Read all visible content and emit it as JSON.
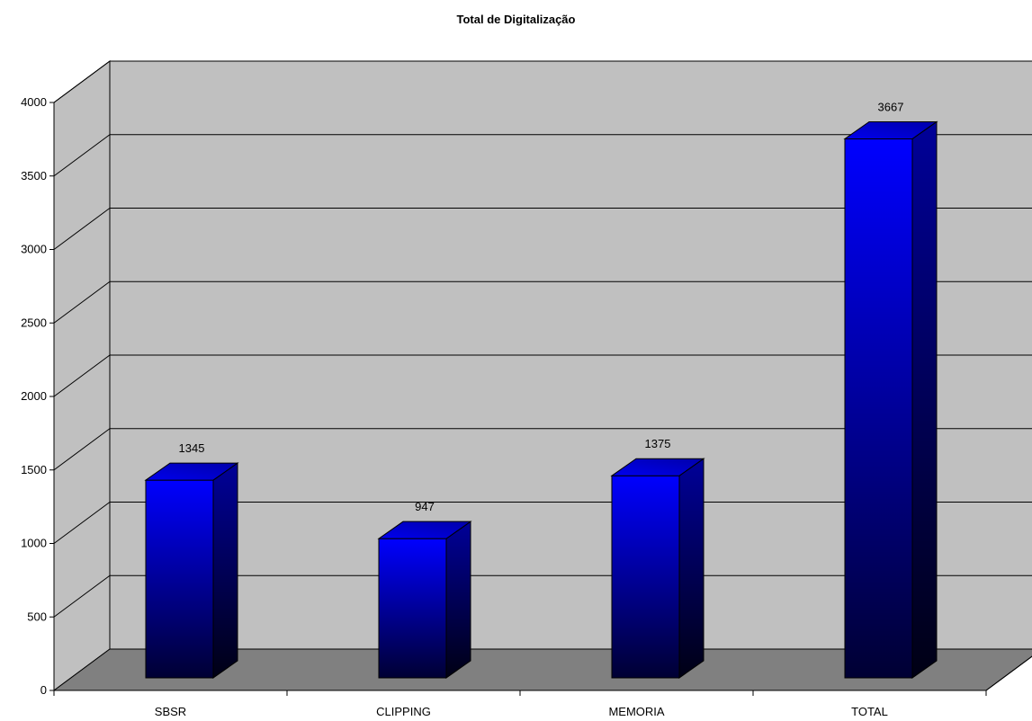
{
  "chart_data": {
    "type": "bar",
    "title": "Total de Digitalização",
    "categories": [
      "SBSR",
      "CLIPPING",
      "MEMORIA",
      "TOTAL"
    ],
    "values": [
      1345,
      947,
      1375,
      3667
    ],
    "data_labels": [
      "1345",
      "947",
      "1375",
      "3667"
    ],
    "ylim": [
      0,
      4000
    ],
    "yticks": [
      0,
      500,
      1000,
      1500,
      2000,
      2500,
      3000,
      3500,
      4000
    ],
    "ytick_labels": [
      "0",
      "500",
      "1000",
      "1500",
      "2000",
      "2500",
      "3000",
      "3500",
      "4000"
    ],
    "xlabel": "",
    "ylabel": "",
    "grid": true,
    "style": "3d-column",
    "colors": {
      "bar_top": "#0000ff",
      "bar_bottom": "#000033",
      "wall": "#c0c0c0",
      "floor": "#808080",
      "gridline": "#000000"
    }
  }
}
